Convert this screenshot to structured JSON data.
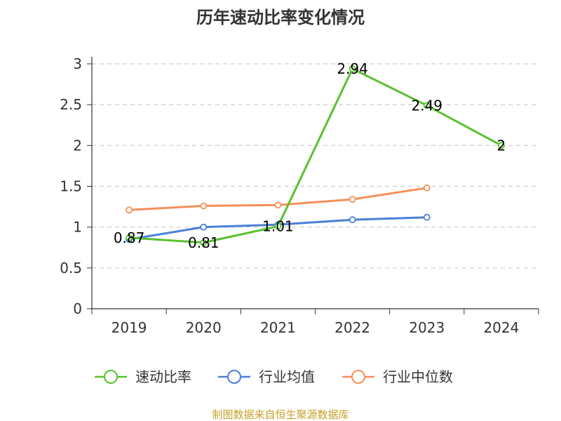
{
  "chart_data": {
    "type": "line",
    "title": "历年速动比率变化情况",
    "categories": [
      "2019",
      "2020",
      "2021",
      "2022",
      "2023",
      "2024"
    ],
    "y_ticks": [
      "0",
      "0.5",
      "1",
      "1.5",
      "2",
      "2.5",
      "3"
    ],
    "ylim": [
      0,
      3
    ],
    "grid": true,
    "legend_position": "bottom",
    "series": [
      {
        "name": "速动比率",
        "color": "#5ac12f",
        "values": [
          0.87,
          0.81,
          1.01,
          2.94,
          2.49,
          2.0
        ],
        "labels": [
          "0.87",
          "0.81",
          "1.01",
          "2.94",
          "2.49",
          "2"
        ]
      },
      {
        "name": "行业均值",
        "color": "#4a7fd8",
        "values": [
          0.85,
          1.0,
          1.03,
          1.09,
          1.12,
          null
        ]
      },
      {
        "name": "行业中位数",
        "color": "#f78f5a",
        "values": [
          1.21,
          1.26,
          1.27,
          1.34,
          1.48,
          null
        ]
      }
    ]
  },
  "source_text": "制图数据来自恒生聚源数据库",
  "source_color": "#c8a02a"
}
